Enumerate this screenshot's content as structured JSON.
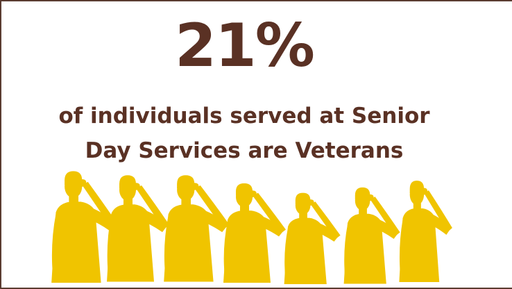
{
  "stat": {
    "value": "21%"
  },
  "caption": {
    "line1": "of individuals served at Senior",
    "line2": "Day Services are Veterans"
  },
  "colors": {
    "text": "#5a3124",
    "border": "#5a3b30",
    "silhouette": "#f0c400",
    "background": "#ffffff"
  },
  "illustration": {
    "icon": "saluting-soldiers-silhouette",
    "figure_count": 7
  }
}
